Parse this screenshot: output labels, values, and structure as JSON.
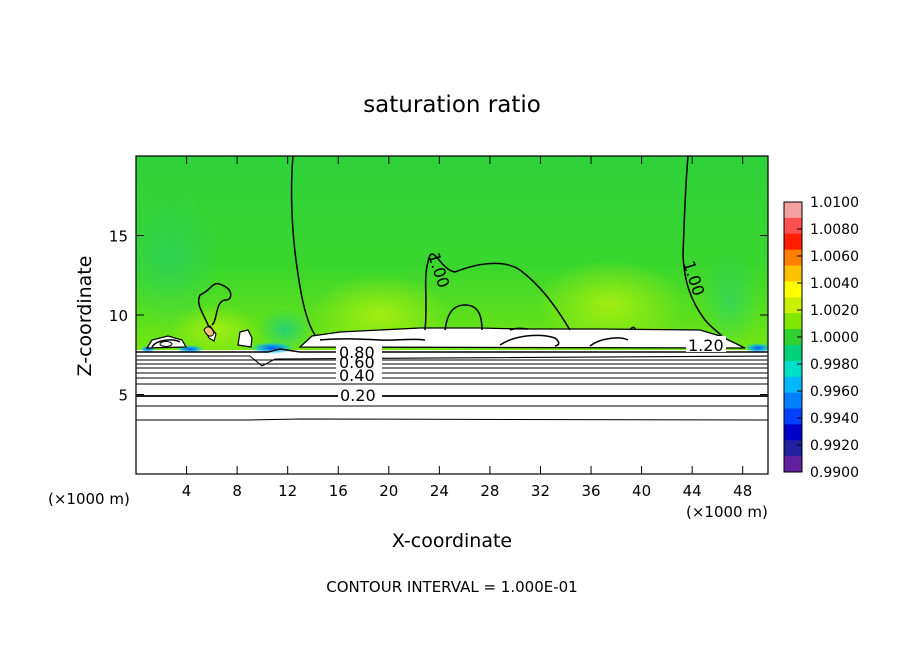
{
  "chart_data": {
    "type": "heatmap",
    "title": "saturation ratio",
    "xlabel": "X-coordinate",
    "ylabel": "Z-coordinate",
    "x_unit_label": "(×1000 m)",
    "y_unit_label": "(×1000 m)",
    "footer": "CONTOUR INTERVAL = 1.000E-01",
    "xlim": [
      0,
      50
    ],
    "ylim": [
      0,
      20
    ],
    "x_ticks": [
      4,
      8,
      12,
      16,
      20,
      24,
      28,
      32,
      36,
      40,
      44,
      48
    ],
    "x_tick_labels": [
      "4",
      "8",
      "12",
      "16",
      "20",
      "24",
      "28",
      "32",
      "36",
      "40",
      "44",
      "48"
    ],
    "y_ticks": [
      5,
      10,
      15
    ],
    "y_tick_labels": [
      "5",
      "10",
      "15"
    ],
    "colorbar": {
      "range": [
        0.99,
        1.01
      ],
      "tick_labels": [
        "1.0100",
        "1.0080",
        "1.0060",
        "1.0040",
        "1.0020",
        "1.0000",
        "0.9980",
        "0.9960",
        "0.9940",
        "0.9920",
        "0.9900"
      ],
      "colors": [
        "#f2a0a0",
        "#ff5050",
        "#ff1e00",
        "#ff8000",
        "#ffc000",
        "#ffff00",
        "#c8f000",
        "#80e600",
        "#30d030",
        "#00d078",
        "#00e0c8",
        "#00b8ff",
        "#0080ff",
        "#0040ff",
        "#0000c8",
        "#2020a0",
        "#6020a0"
      ]
    },
    "contour_levels_labeled": [
      "1.00",
      "1.00",
      "1.20",
      "0.80",
      "0.60",
      "0.40",
      "0.20"
    ],
    "cloud_base_z": 8.0
  }
}
